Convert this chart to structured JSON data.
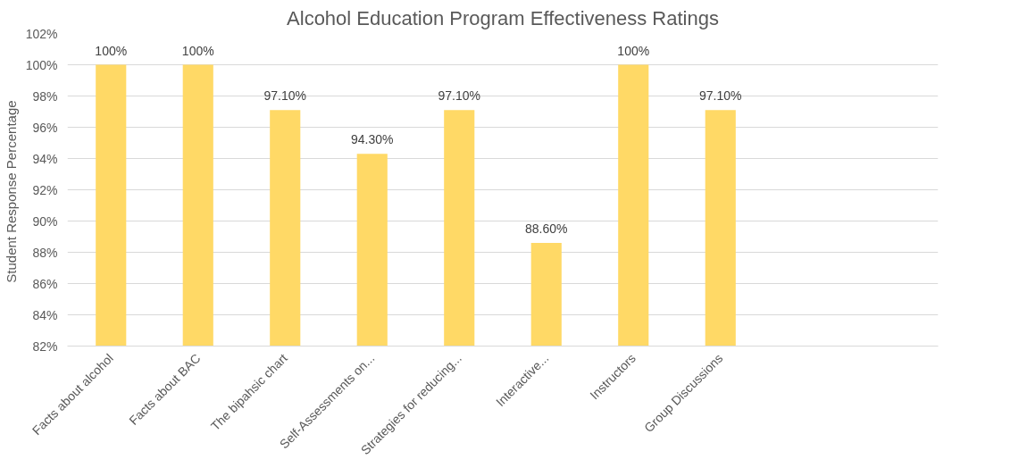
{
  "chart_data": {
    "type": "bar",
    "title": "Alcohol Education Program Effectiveness Ratings",
    "ylabel": "Student  Response Percentage",
    "categories": [
      "Facts about alcohol",
      "Facts about BAC",
      "The bipahsic chart",
      "Self-Assessments on...",
      "Strategies for reducing...",
      "Interactive...",
      "Instructors",
      "Group Discussions",
      null,
      null
    ],
    "values": [
      100,
      100,
      97.1,
      94.3,
      97.1,
      88.6,
      100,
      97.1,
      null,
      null
    ],
    "color": "#ffd966",
    "value_labels": [
      "100%",
      "100%",
      "97.10%",
      "94.30%",
      "97.10%",
      "88.60%",
      "100%",
      "97.10%",
      null,
      null
    ],
    "ylim": [
      82,
      102
    ],
    "yticks": [
      {
        "value": 82,
        "label": "82%"
      },
      {
        "value": 84,
        "label": "84%"
      },
      {
        "value": 86,
        "label": "86%"
      },
      {
        "value": 88,
        "label": "88%"
      },
      {
        "value": 90,
        "label": "90%"
      },
      {
        "value": 92,
        "label": "92%"
      },
      {
        "value": 94,
        "label": "94%"
      },
      {
        "value": 96,
        "label": "96%"
      },
      {
        "value": 98,
        "label": "98%"
      },
      {
        "value": 100,
        "label": "100%"
      },
      {
        "value": 102,
        "label": "102%"
      }
    ],
    "grid": "y"
  }
}
